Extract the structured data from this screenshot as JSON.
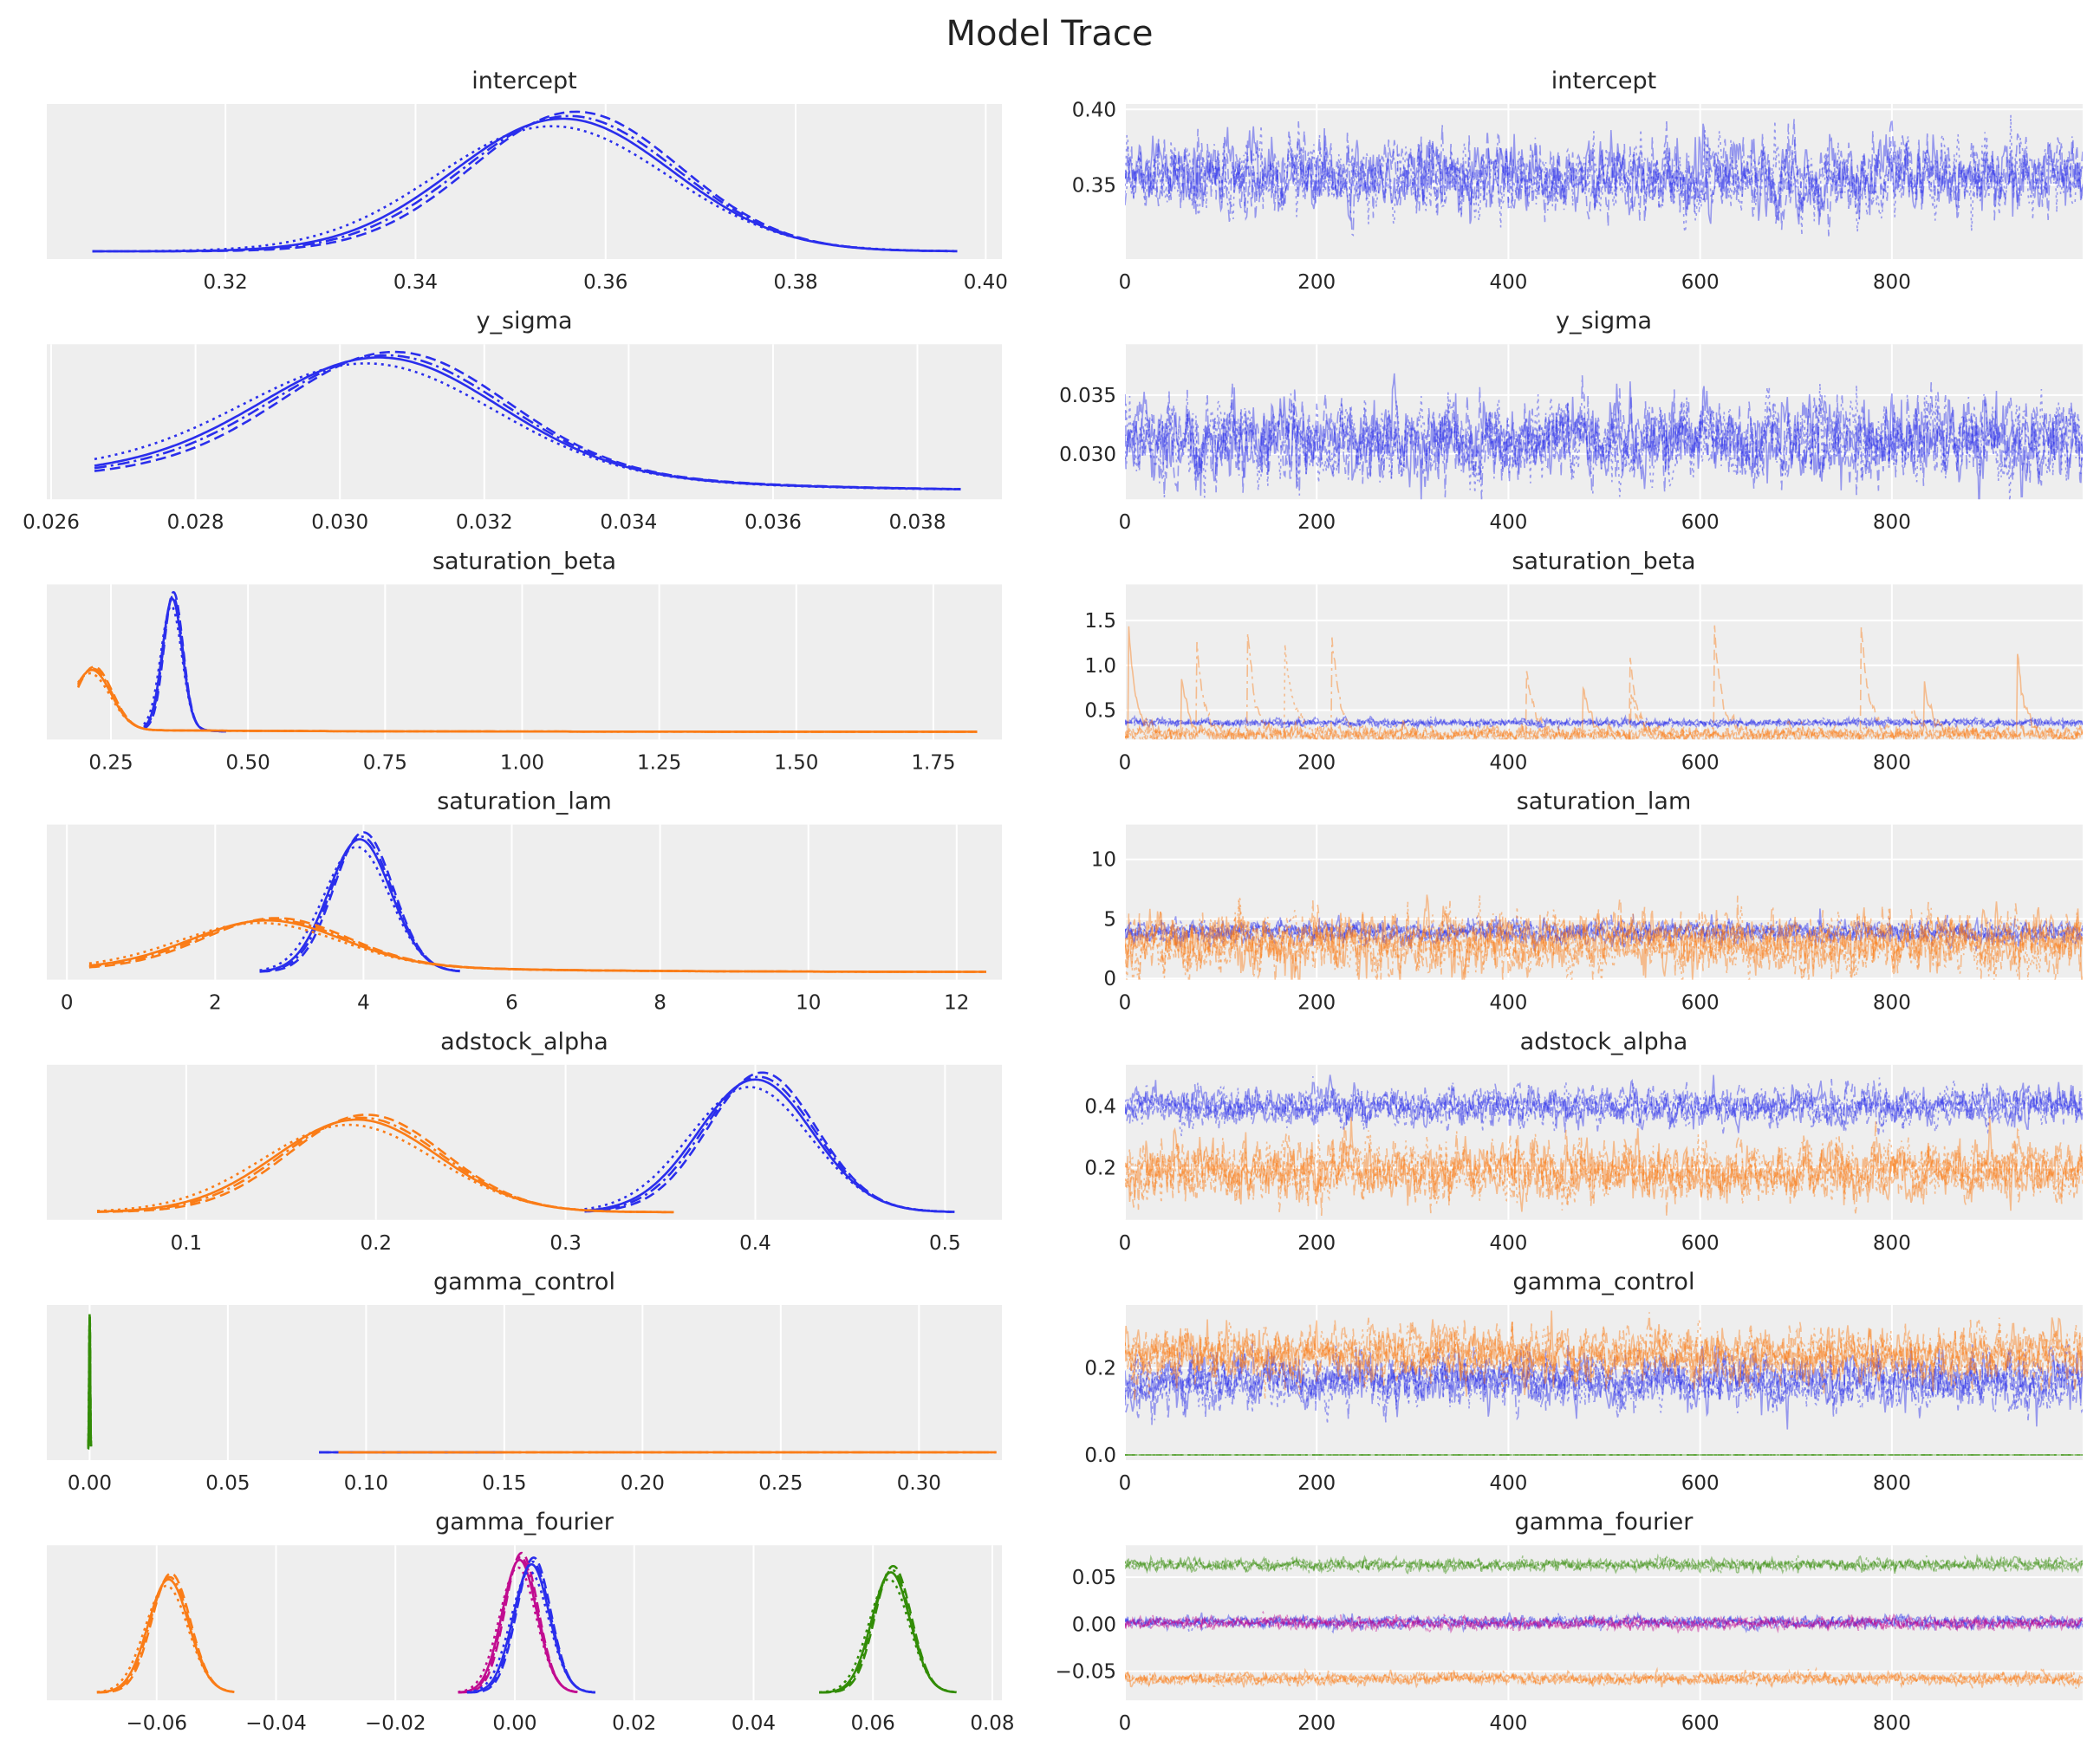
{
  "title": "Model Trace",
  "colors": {
    "background": "#eeeeee",
    "grid": "#ffffff",
    "chain_colors": [
      "#2a2eec",
      "#fa7c17",
      "#328c06",
      "#c10c90"
    ]
  },
  "chart_data": [
    {
      "type": "line",
      "title": "intercept",
      "kde": {
        "xlim": [
          0.3012,
          0.4017
        ],
        "xticks": [
          "0.32",
          "0.34",
          "0.36",
          "0.38",
          "0.40"
        ],
        "components": [
          {
            "color": "#2a2eec",
            "mean": 0.3555,
            "sd": 0.0115,
            "min": 0.306,
            "max": 0.397,
            "w": 0,
            "tail": 0
          }
        ]
      },
      "trace": {
        "xlim": [
          0,
          999
        ],
        "ylim": [
          0.301,
          0.4036
        ],
        "xticks": [
          "0",
          "200",
          "400",
          "600",
          "800"
        ],
        "yticks": [
          "0.35",
          "0.40"
        ],
        "components": [
          {
            "color": "#2a2eec",
            "mean": 0.355,
            "sd": 0.012
          }
        ]
      }
    },
    {
      "type": "line",
      "title": "y_sigma",
      "kde": {
        "xlim": [
          0.02594,
          0.03917
        ],
        "xticks": [
          "0.026",
          "0.028",
          "0.030",
          "0.032",
          "0.034",
          "0.036",
          "0.038"
        ],
        "components": [
          {
            "color": "#2a2eec",
            "mean": 0.0306,
            "sd": 0.0016,
            "min": 0.0266,
            "max": 0.0386,
            "w": 0.25,
            "tail": 0.0025
          }
        ]
      },
      "trace": {
        "xlim": [
          0,
          999
        ],
        "ylim": [
          0.02614,
          0.03932
        ],
        "xticks": [
          "0",
          "200",
          "400",
          "600",
          "800"
        ],
        "yticks": [
          "0.030",
          "0.035"
        ],
        "components": [
          {
            "color": "#2a2eec",
            "mean": 0.0311,
            "sd": 0.0017
          }
        ]
      }
    },
    {
      "type": "line",
      "title": "saturation_beta",
      "kde": {
        "xlim": [
          0.133,
          1.875
        ],
        "xticks": [
          "0.25",
          "0.50",
          "0.75",
          "1.00",
          "1.25",
          "1.50",
          "1.75"
        ],
        "components": [
          {
            "color": "#2a2eec",
            "mean": 0.362,
            "sd": 0.018,
            "min": 0.31,
            "max": 0.46,
            "w": 0.05,
            "tail": 0.03
          },
          {
            "color": "#fa7c17",
            "mean": 0.215,
            "sd": 0.035,
            "min": 0.19,
            "max": 1.83,
            "w": 0.12,
            "tail": 0.35
          }
        ]
      },
      "trace": {
        "xlim": [
          0,
          999
        ],
        "ylim": [
          0.172,
          1.903
        ],
        "xticks": [
          "0",
          "200",
          "400",
          "600",
          "800"
        ],
        "yticks": [
          "0.5",
          "1.0",
          "1.5"
        ],
        "components": [
          {
            "color": "#2a2eec",
            "mean": 0.36,
            "sd": 0.02
          },
          {
            "color": "#fa7c17",
            "mean": 0.23,
            "sd": 0.04,
            "spikes": true
          }
        ]
      }
    },
    {
      "type": "line",
      "title": "saturation_lam",
      "kde": {
        "xlim": [
          -0.271,
          12.61
        ],
        "xticks": [
          "0",
          "2",
          "4",
          "6",
          "8",
          "10",
          "12"
        ],
        "components": [
          {
            "color": "#2a2eec",
            "mean": 3.95,
            "sd": 0.42,
            "min": 2.6,
            "max": 5.3,
            "w": 0,
            "tail": 0
          },
          {
            "color": "#fa7c17",
            "mean": 2.7,
            "sd": 1.0,
            "min": 0.3,
            "max": 12.4,
            "w": 0.2,
            "tail": 2.0
          }
        ]
      },
      "trace": {
        "xlim": [
          0,
          999
        ],
        "ylim": [
          -0.1,
          12.92
        ],
        "xticks": [
          "0",
          "200",
          "400",
          "600",
          "800"
        ],
        "yticks": [
          "0",
          "5",
          "10"
        ],
        "components": [
          {
            "color": "#2a2eec",
            "mean": 3.9,
            "sd": 0.45
          },
          {
            "color": "#fa7c17",
            "mean": 3.0,
            "sd": 1.2
          }
        ]
      }
    },
    {
      "type": "line",
      "title": "adstock_alpha",
      "kde": {
        "xlim": [
          0.0265,
          0.53
        ],
        "xticks": [
          "0.1",
          "0.2",
          "0.3",
          "0.4",
          "0.5"
        ],
        "components": [
          {
            "color": "#2a2eec",
            "mean": 0.4,
            "sd": 0.03,
            "min": 0.31,
            "max": 0.505,
            "w": 0,
            "tail": 0
          },
          {
            "color": "#fa7c17",
            "mean": 0.19,
            "sd": 0.043,
            "min": 0.053,
            "max": 0.357,
            "w": 0,
            "tail": 0
          }
        ]
      },
      "trace": {
        "xlim": [
          0,
          999
        ],
        "ylim": [
          0.0304,
          0.535
        ],
        "xticks": [
          "0",
          "200",
          "400",
          "600",
          "800"
        ],
        "yticks": [
          "0.2",
          "0.4"
        ],
        "components": [
          {
            "color": "#2a2eec",
            "mean": 0.4,
            "sd": 0.03
          },
          {
            "color": "#fa7c17",
            "mean": 0.19,
            "sd": 0.045
          }
        ]
      }
    },
    {
      "type": "line",
      "title": "gamma_control",
      "kde": {
        "xlim": [
          -0.0155,
          0.33
        ],
        "xticks": [
          "0.00",
          "0.05",
          "0.10",
          "0.15",
          "0.20",
          "0.25",
          "0.30"
        ],
        "components": [
          {
            "color": "#328c06",
            "mean": 0,
            "sd": 0.0002,
            "min": -0.0005,
            "max": 0.0005,
            "w": 0,
            "tail": 0
          },
          {
            "color": "#2a2eec",
            "mean": 0.12,
            "sd": 1,
            "min": 0.083,
            "max": 0.15,
            "w": 0,
            "tail": 0
          },
          {
            "color": "#fa7c17",
            "mean": 0.2,
            "sd": 1,
            "min": 0.09,
            "max": 0.328,
            "w": 0,
            "tail": 0
          }
        ]
      },
      "trace": {
        "xlim": [
          0,
          999
        ],
        "ylim": [
          -0.012,
          0.345
        ],
        "xticks": [
          "0",
          "200",
          "400",
          "600",
          "800"
        ],
        "yticks": [
          "0.0",
          "0.2"
        ],
        "components": [
          {
            "color": "#328c06",
            "mean": 0,
            "sd": 0
          },
          {
            "color": "#2a2eec",
            "mean": 0.17,
            "sd": 0.03
          },
          {
            "color": "#fa7c17",
            "mean": 0.23,
            "sd": 0.03
          }
        ]
      }
    },
    {
      "type": "line",
      "title": "gamma_fourier",
      "kde": {
        "xlim": [
          -0.0784,
          0.0816
        ],
        "xticks": [
          "−0.06",
          "−0.04",
          "−0.02",
          "0.00",
          "0.02",
          "0.04",
          "0.06",
          "0.08"
        ],
        "components": [
          {
            "color": "#fa7c17",
            "mean": -0.058,
            "sd": 0.0034,
            "min": -0.07,
            "max": -0.047,
            "w": 0,
            "tail": 0
          },
          {
            "color": "#c10c90",
            "mean": 0.0008,
            "sd": 0.0029,
            "min": -0.0095,
            "max": 0.0105,
            "w": 0,
            "tail": 0
          },
          {
            "color": "#2a2eec",
            "mean": 0.0028,
            "sd": 0.003,
            "min": -0.008,
            "max": 0.0135,
            "w": 0,
            "tail": 0
          },
          {
            "color": "#328c06",
            "mean": 0.063,
            "sd": 0.0032,
            "min": 0.051,
            "max": 0.074,
            "w": 0,
            "tail": 0
          }
        ]
      },
      "trace": {
        "xlim": [
          0,
          999
        ],
        "ylim": [
          -0.081,
          0.084
        ],
        "xticks": [
          "0",
          "200",
          "400",
          "600",
          "800"
        ],
        "yticks": [
          "−0.05",
          "0.00",
          "0.05"
        ],
        "components": [
          {
            "color": "#328c06",
            "mean": 0.063,
            "sd": 0.003
          },
          {
            "color": "#2a2eec",
            "mean": 0.002,
            "sd": 0.003
          },
          {
            "color": "#c10c90",
            "mean": 0.001,
            "sd": 0.003
          },
          {
            "color": "#fa7c17",
            "mean": -0.058,
            "sd": 0.003
          }
        ]
      }
    }
  ]
}
